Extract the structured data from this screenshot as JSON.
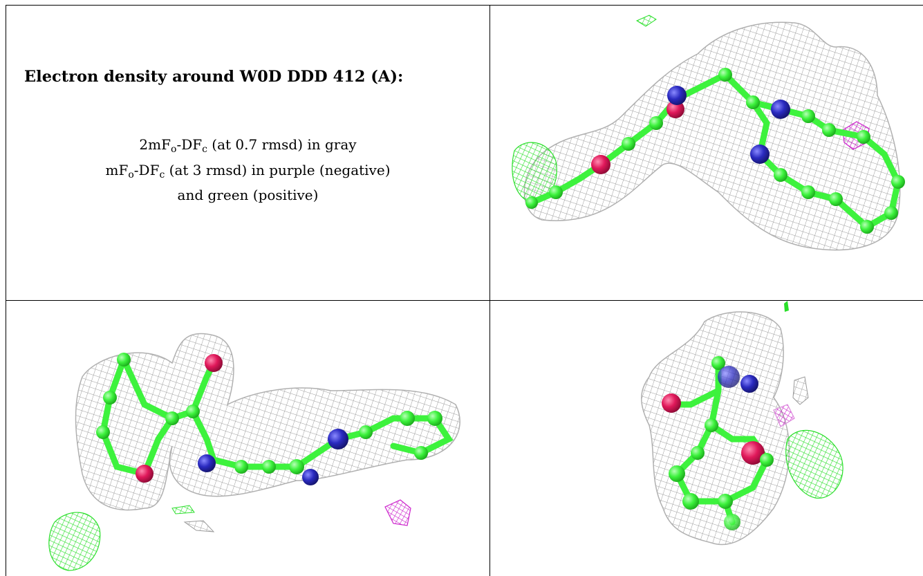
{
  "caption": {
    "title": "Electron density around W0D DDD 412 (A):",
    "line1": {
      "prefix": "2mF",
      "sub1": "o",
      "mid": "-DF",
      "sub2": "c",
      "suffix": " (at 0.7 rmsd) in gray"
    },
    "line2": {
      "prefix": "mF",
      "sub1": "o",
      "mid": "-DF",
      "sub2": "c",
      "suffix": " (at 3 rmsd) in purple (negative)"
    },
    "line3": "and green (positive)"
  },
  "colors": {
    "gray_mesh": "#9a9a9a",
    "green_mesh": "#2adf2a",
    "purple_mesh": "#cc22cc",
    "carbon": "#3df23d",
    "nitrogen": "#2a2ac0",
    "oxygen": "#e0185a"
  },
  "panels": [
    {
      "id": "view-1",
      "content": "electron-density-render"
    },
    {
      "id": "view-2",
      "content": "electron-density-render"
    },
    {
      "id": "view-3",
      "content": "electron-density-render"
    }
  ]
}
